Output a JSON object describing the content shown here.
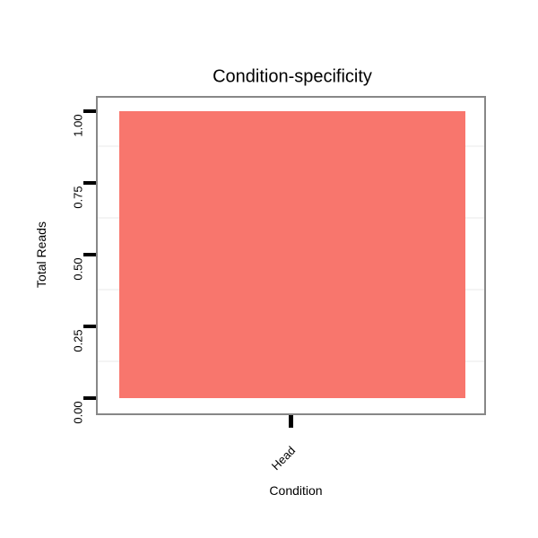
{
  "chart_data": {
    "type": "bar",
    "title": "Condition-specificity",
    "xlabel": "Condition",
    "ylabel": "Total Reads",
    "categories": [
      "Head"
    ],
    "values": [
      1.0
    ],
    "ylim": [
      0,
      1.0
    ],
    "ytick_labels": [
      "0.00",
      "0.25",
      "0.50",
      "0.75",
      "1.00"
    ],
    "ytick_values": [
      0.0,
      0.25,
      0.5,
      0.75,
      1.0
    ],
    "bar_color": "#F8766D",
    "panel_border_color": "#878787",
    "tick_color": "#000000",
    "minor_gridline_color": "#f4f4f4",
    "grid": "minor-horizontal-only",
    "legend": "none",
    "x_tick_label_angle_deg": 45,
    "y_tick_label_angle_deg": 90
  }
}
